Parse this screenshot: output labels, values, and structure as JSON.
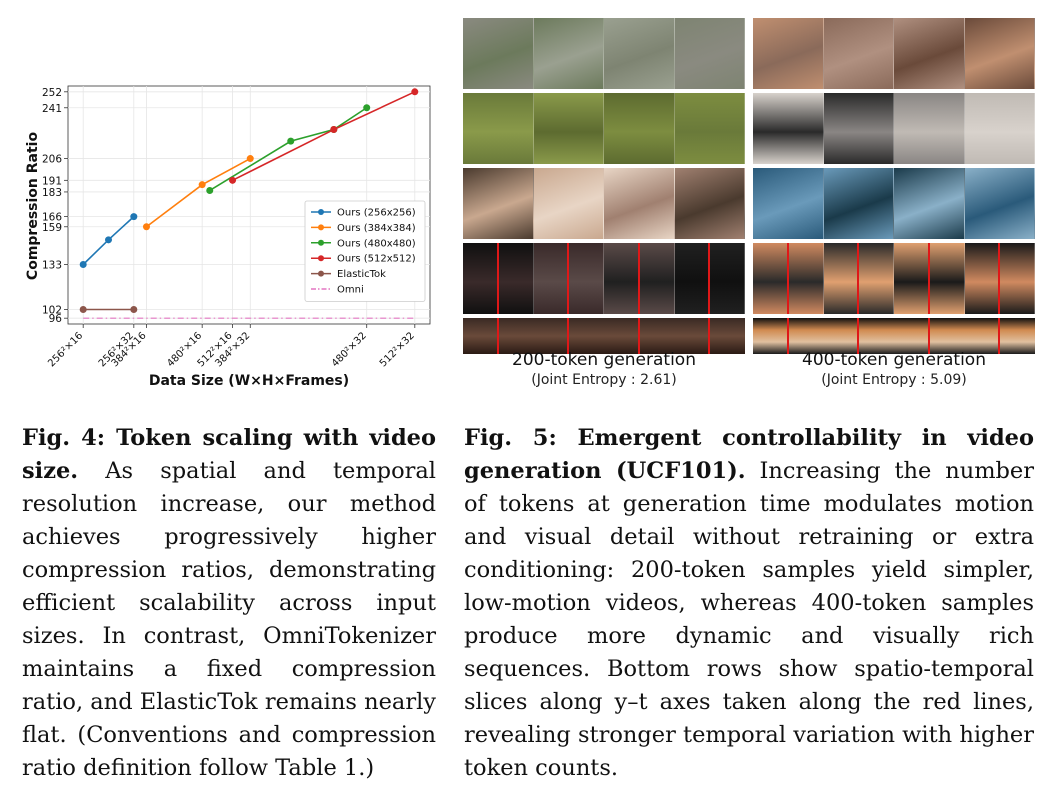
{
  "chart_data": {
    "type": "line",
    "xlabel": "Data Size (W×H×Frames)",
    "ylabel": "Compression Ratio",
    "x_ticks": [
      "256²×16",
      "256²×32",
      "384²×16",
      "480²×16",
      "512²×16",
      "384²×32",
      "480²×32",
      "512²×32"
    ],
    "y_ticks": [
      96,
      102,
      133,
      159,
      166,
      183,
      191,
      206,
      241,
      252
    ],
    "ylim": [
      92,
      256
    ],
    "grid": true,
    "legend_position": "center-right",
    "series": [
      {
        "name": "Ours (256x256)",
        "color": "#1f77b4",
        "style": "solid",
        "points": [
          [
            0,
            133
          ],
          [
            1,
            150
          ],
          [
            2,
            166
          ]
        ]
      },
      {
        "name": "Ours (384x384)",
        "color": "#ff7f0e",
        "style": "solid",
        "points": [
          [
            2.5,
            159
          ],
          [
            4.7,
            188
          ],
          [
            6.6,
            206
          ]
        ]
      },
      {
        "name": "Ours (480x480)",
        "color": "#2ca02c",
        "style": "solid",
        "points": [
          [
            5.0,
            184
          ],
          [
            8.2,
            218
          ],
          [
            9.9,
            226
          ],
          [
            11.2,
            241
          ]
        ]
      },
      {
        "name": "Ours (512x512)",
        "color": "#d62728",
        "style": "solid",
        "points": [
          [
            5.9,
            191
          ],
          [
            9.9,
            226
          ],
          [
            13.1,
            252
          ]
        ]
      },
      {
        "name": "ElasticTok",
        "color": "#8c564b",
        "style": "solid",
        "points": [
          [
            0,
            102
          ],
          [
            2,
            102
          ]
        ]
      },
      {
        "name": "Omni",
        "color": "#e377c2",
        "style": "dashdot",
        "points": [
          [
            0,
            96
          ],
          [
            13.1,
            96
          ]
        ]
      }
    ]
  },
  "figure5": {
    "left_label": "200-token generation",
    "left_sub": "(Joint Entropy : 2.61)",
    "right_label": "400-token generation",
    "right_sub": "(Joint Entropy : 5.09)"
  },
  "palette": {
    "left": [
      [
        "#8a8a80",
        "#6c7a5c",
        "#9aa090",
        "#7e8472"
      ],
      [
        "#6a7a3a",
        "#8a9a4a",
        "#5d6b30",
        "#7d8d40"
      ],
      [
        "#4a3a2e",
        "#c9a88f",
        "#e8d5c5",
        "#a08070"
      ],
      [
        "#101010",
        "#3a2a2a",
        "#5a4a48",
        "#202020"
      ]
    ],
    "left_slice": [
      "#3a2a24",
      "#6a4a3a",
      "#2a1a14"
    ],
    "right": [
      [
        "#c08f70",
        "#8a6a5a",
        "#b09080",
        "#6a4a3a"
      ],
      [
        "#d8d2cc",
        "#2a2a2a",
        "#8a8684",
        "#c0bab4"
      ],
      [
        "#2a5a7a",
        "#6a9aba",
        "#1a3a4a",
        "#8ab0c8"
      ],
      [
        "#d08a60",
        "#2a2a2a",
        "#e0a070",
        "#1a1a1a"
      ]
    ],
    "right_slice": [
      "#101010",
      "#d08a50",
      "#e0c0a0",
      "#1a1a1a"
    ]
  },
  "caption4": {
    "lead": "Fig. 4: Token scaling with video size.",
    "body": " As spatial and temporal resolution increase, our method achieves progressively higher compression ratios, demonstrating efficient scalability across input sizes. In contrast, OmniTokenizer maintains a fixed compression ratio, and ElasticTok remains nearly flat. (Conventions and compression ratio definition follow Table 1.)"
  },
  "caption5": {
    "lead": "Fig. 5: Emergent controllability in video generation (UCF101).",
    "body": " Increasing the number of tokens at generation time modulates motion and visual detail without retraining or extra conditioning: 200-token samples yield simpler, low-motion videos, whereas 400-token samples produce more dynamic and visually rich sequences. Bottom rows show spatio-temporal slices along y–t axes taken along the red lines, revealing stronger temporal variation with higher token counts."
  }
}
